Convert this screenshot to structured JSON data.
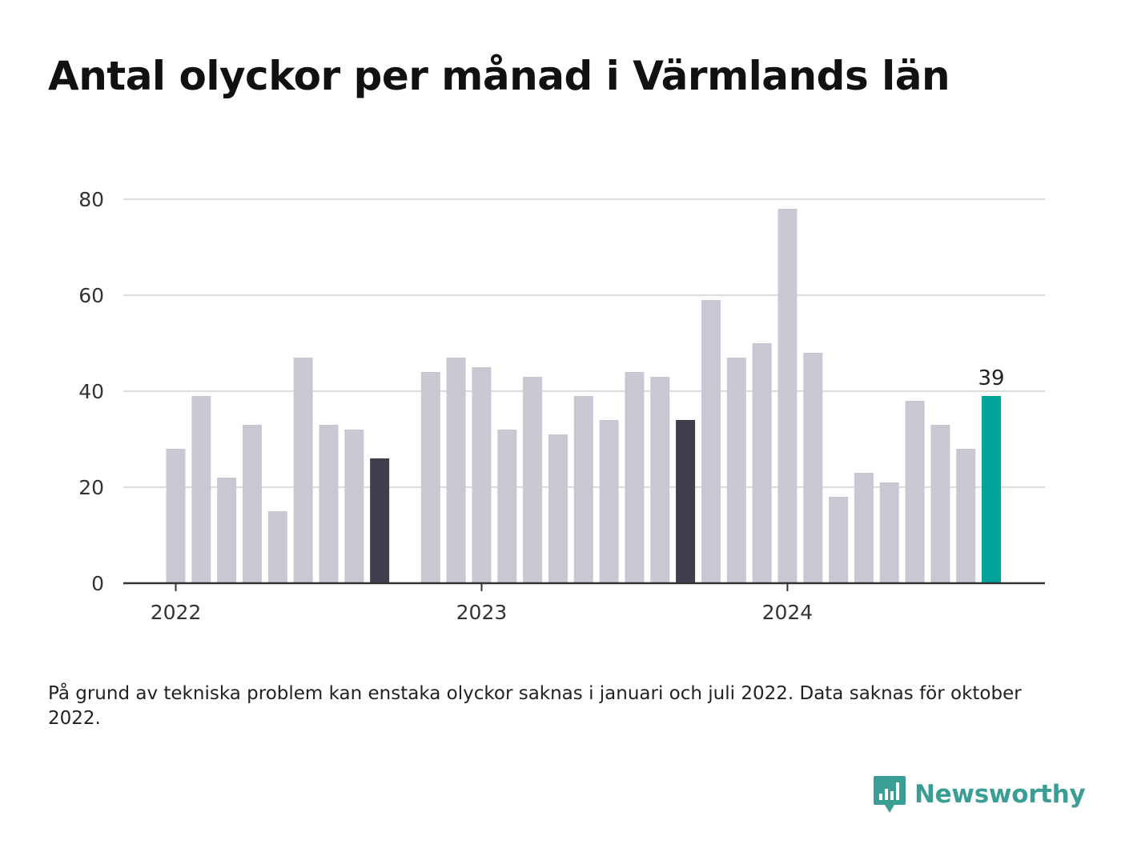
{
  "title": "Antal olyckor per månad i Värmlands län",
  "note": "På grund av tekniska problem kan enstaka olyckor saknas i januari och juli 2022. Data saknas för oktober 2022.",
  "brand": {
    "name": "Newsworthy",
    "icon": "newsworthy-logo-icon",
    "color": "#3a9e95"
  },
  "colors": {
    "bar": "#c8c7d2",
    "highlight_dark": "#3f3e4c",
    "highlight_latest": "#00a49b",
    "grid": "#dcdcdc",
    "axis": "#333333"
  },
  "chart_data": {
    "type": "bar",
    "x": [
      "2022-01",
      "2022-02",
      "2022-03",
      "2022-04",
      "2022-05",
      "2022-06",
      "2022-07",
      "2022-08",
      "2022-09",
      "2022-10",
      "2022-11",
      "2022-12",
      "2023-01",
      "2023-02",
      "2023-03",
      "2023-04",
      "2023-05",
      "2023-06",
      "2023-07",
      "2023-08",
      "2023-09",
      "2023-10",
      "2023-11",
      "2023-12",
      "2024-01",
      "2024-02",
      "2024-03",
      "2024-04",
      "2024-05",
      "2024-06",
      "2024-07",
      "2024-08",
      "2024-09"
    ],
    "values": [
      28,
      39,
      22,
      33,
      15,
      47,
      33,
      32,
      26,
      null,
      44,
      47,
      45,
      32,
      43,
      31,
      39,
      34,
      44,
      43,
      34,
      59,
      47,
      50,
      78,
      48,
      18,
      23,
      21,
      38,
      33,
      28,
      39
    ],
    "highlight": {
      "2022-09": "dark",
      "2023-09": "dark",
      "2024-09": "latest"
    },
    "value_labels": [
      {
        "x": "2024-09",
        "text": "39"
      }
    ],
    "xticks": [
      {
        "x": "2022-01",
        "label": "2022"
      },
      {
        "x": "2023-01",
        "label": "2023"
      },
      {
        "x": "2024-01",
        "label": "2024"
      }
    ],
    "yticks": [
      0,
      20,
      40,
      60,
      80
    ],
    "ylim": [
      0,
      80
    ],
    "grid": true,
    "xlabel": "",
    "ylabel": ""
  }
}
